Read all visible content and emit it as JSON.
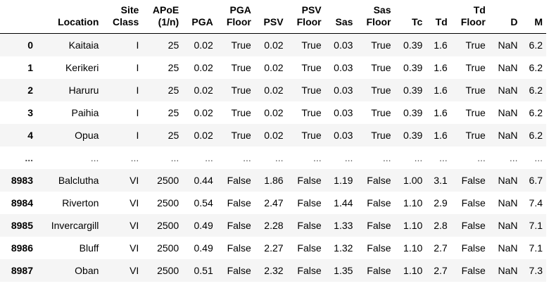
{
  "table": {
    "columns": [
      "",
      "Location",
      "Site Class",
      "APoE (1/n)",
      "PGA",
      "PGA Floor",
      "PSV",
      "PSV Floor",
      "Sas",
      "Sas Floor",
      "Tc",
      "Td",
      "Td Floor",
      "D",
      "M"
    ],
    "header_lines": [
      [
        "",
        ""
      ],
      [
        "",
        "Location"
      ],
      [
        "Site",
        "Class"
      ],
      [
        "APoE",
        "(1/n)"
      ],
      [
        "",
        "PGA"
      ],
      [
        "PGA",
        "Floor"
      ],
      [
        "",
        "PSV"
      ],
      [
        "PSV",
        "Floor"
      ],
      [
        "",
        "Sas"
      ],
      [
        "Sas",
        "Floor"
      ],
      [
        "",
        "Tc"
      ],
      [
        "",
        "Td"
      ],
      [
        "Td",
        "Floor"
      ],
      [
        "",
        "D"
      ],
      [
        "",
        "M"
      ]
    ],
    "rows": [
      [
        "0",
        "Kaitaia",
        "I",
        "25",
        "0.02",
        "True",
        "0.02",
        "True",
        "0.03",
        "True",
        "0.39",
        "1.6",
        "True",
        "NaN",
        "6.2"
      ],
      [
        "1",
        "Kerikeri",
        "I",
        "25",
        "0.02",
        "True",
        "0.02",
        "True",
        "0.03",
        "True",
        "0.39",
        "1.6",
        "True",
        "NaN",
        "6.2"
      ],
      [
        "2",
        "Haruru",
        "I",
        "25",
        "0.02",
        "True",
        "0.02",
        "True",
        "0.03",
        "True",
        "0.39",
        "1.6",
        "True",
        "NaN",
        "6.2"
      ],
      [
        "3",
        "Paihia",
        "I",
        "25",
        "0.02",
        "True",
        "0.02",
        "True",
        "0.03",
        "True",
        "0.39",
        "1.6",
        "True",
        "NaN",
        "6.2"
      ],
      [
        "4",
        "Opua",
        "I",
        "25",
        "0.02",
        "True",
        "0.02",
        "True",
        "0.03",
        "True",
        "0.39",
        "1.6",
        "True",
        "NaN",
        "6.2"
      ],
      [
        "...",
        "...",
        "...",
        "...",
        "...",
        "...",
        "...",
        "...",
        "...",
        "...",
        "...",
        "...",
        "...",
        "...",
        "..."
      ],
      [
        "8983",
        "Balclutha",
        "VI",
        "2500",
        "0.44",
        "False",
        "1.86",
        "False",
        "1.19",
        "False",
        "1.00",
        "3.1",
        "False",
        "NaN",
        "6.7"
      ],
      [
        "8984",
        "Riverton",
        "VI",
        "2500",
        "0.54",
        "False",
        "2.47",
        "False",
        "1.44",
        "False",
        "1.10",
        "2.9",
        "False",
        "NaN",
        "7.4"
      ],
      [
        "8985",
        "Invercargill",
        "VI",
        "2500",
        "0.49",
        "False",
        "2.28",
        "False",
        "1.33",
        "False",
        "1.10",
        "2.8",
        "False",
        "NaN",
        "7.1"
      ],
      [
        "8986",
        "Bluff",
        "VI",
        "2500",
        "0.49",
        "False",
        "2.27",
        "False",
        "1.32",
        "False",
        "1.10",
        "2.7",
        "False",
        "NaN",
        "7.1"
      ],
      [
        "8987",
        "Oban",
        "VI",
        "2500",
        "0.51",
        "False",
        "2.32",
        "False",
        "1.35",
        "False",
        "1.10",
        "2.7",
        "False",
        "NaN",
        "7.3"
      ]
    ]
  }
}
